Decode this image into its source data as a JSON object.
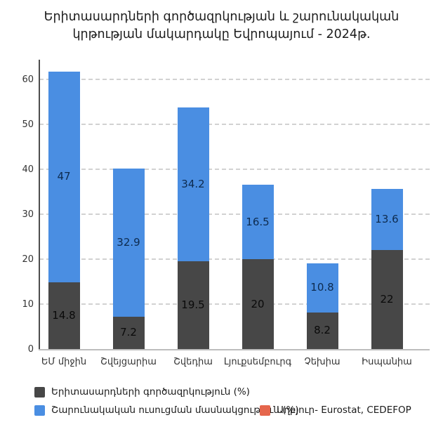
{
  "title": {
    "line1": "Երիտասարդների գործազրկության և շարունակական",
    "line2": "կրթության մակարդակը Եվրոպայում - 2024թ."
  },
  "colors": {
    "unemployment": "#474747",
    "education": "#4A8EE2",
    "source": "#E5664C",
    "grid": "#d2d2d2",
    "value_label_on_dark": "#0a0a0a",
    "value_label_on_blue": "#0d2b4f"
  },
  "legend": [
    {
      "label": "Երիտասարդների գործազրկություն (%)",
      "color_key": "unemployment"
    },
    {
      "label": "Շարունակական ուսուցման մասնակցություն (%)",
      "color_key": "education"
    },
    {
      "label": "Աղբյուր- Eurostat, CEDEFOP",
      "color_key": "source"
    }
  ],
  "chart_data": {
    "type": "bar",
    "stacked": true,
    "title": "Երիտասարդների գործազրկության և շարունակական կրթության մակարդակը Եվրոպայում - 2024թ.",
    "categories": [
      "ԵՄ միջին",
      "Շվեյցարիա",
      "Շվեդիա",
      "Լյուքսեմբուրգ",
      "Չեխիա",
      "Իսպանիա"
    ],
    "series": [
      {
        "name": "Երիտասարդների գործազրկություն (%)",
        "color_key": "unemployment",
        "values": [
          14.8,
          7.2,
          19.5,
          20,
          8.2,
          22
        ]
      },
      {
        "name": "Շարունակական ուսուցման մասնակցություն (%)",
        "color_key": "education",
        "values": [
          47,
          32.9,
          34.2,
          16.5,
          10.8,
          13.6
        ]
      }
    ],
    "totals": [
      61.8,
      40.1,
      53.7,
      36.5,
      19,
      35.6
    ],
    "ylim": [
      0,
      64.4
    ],
    "yticks": [
      0,
      10,
      20,
      30,
      40,
      50,
      60
    ],
    "grid": "dashed-horizontal",
    "legend_position": "bottom-left"
  }
}
